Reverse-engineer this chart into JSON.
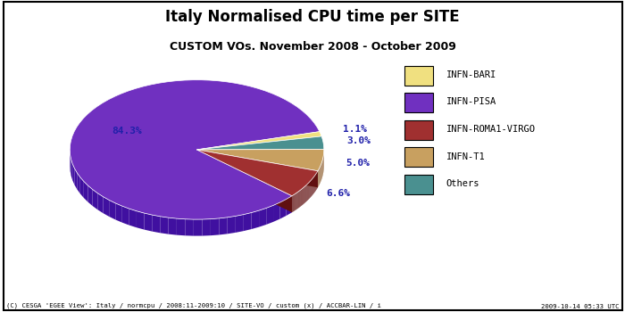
{
  "title": "Italy Normalised CPU time per SITE",
  "subtitle": "CUSTOM VOs. November 2008 - October 2009",
  "plot_labels": [
    "INFN-BARI",
    "Others",
    "INFN-T1",
    "INFN-ROMA1-VIRGO",
    "INFN-PISA"
  ],
  "plot_values": [
    1.1,
    3.0,
    5.0,
    6.6,
    84.3
  ],
  "plot_colors": [
    "#f0e080",
    "#4a9090",
    "#c8a060",
    "#a03030",
    "#7030c0"
  ],
  "plot_colors_dark": [
    "#b0a040",
    "#206060",
    "#906030",
    "#601010",
    "#4010a0"
  ],
  "legend_labels": [
    "INFN-BARI",
    "INFN-PISA",
    "INFN-ROMA1-VIRGO",
    "INFN-T1",
    "Others"
  ],
  "legend_colors": [
    "#f0e080",
    "#7030c0",
    "#a03030",
    "#c8a060",
    "#4a9090"
  ],
  "pct_labels": [
    "1.1%",
    "3.0%",
    "5.0%",
    "6.6%",
    "84.3%"
  ],
  "footer_left": "(C) CESGA 'EGEE View': Italy / normcpu / 2008:11-2009:10 / SITE-VO / custom (x) / ACCBAR-LIN / i",
  "footer_right": "2009-10-14 05:33 UTC",
  "background_color": "#ffffff",
  "legend_bg": "#e8e8e8"
}
